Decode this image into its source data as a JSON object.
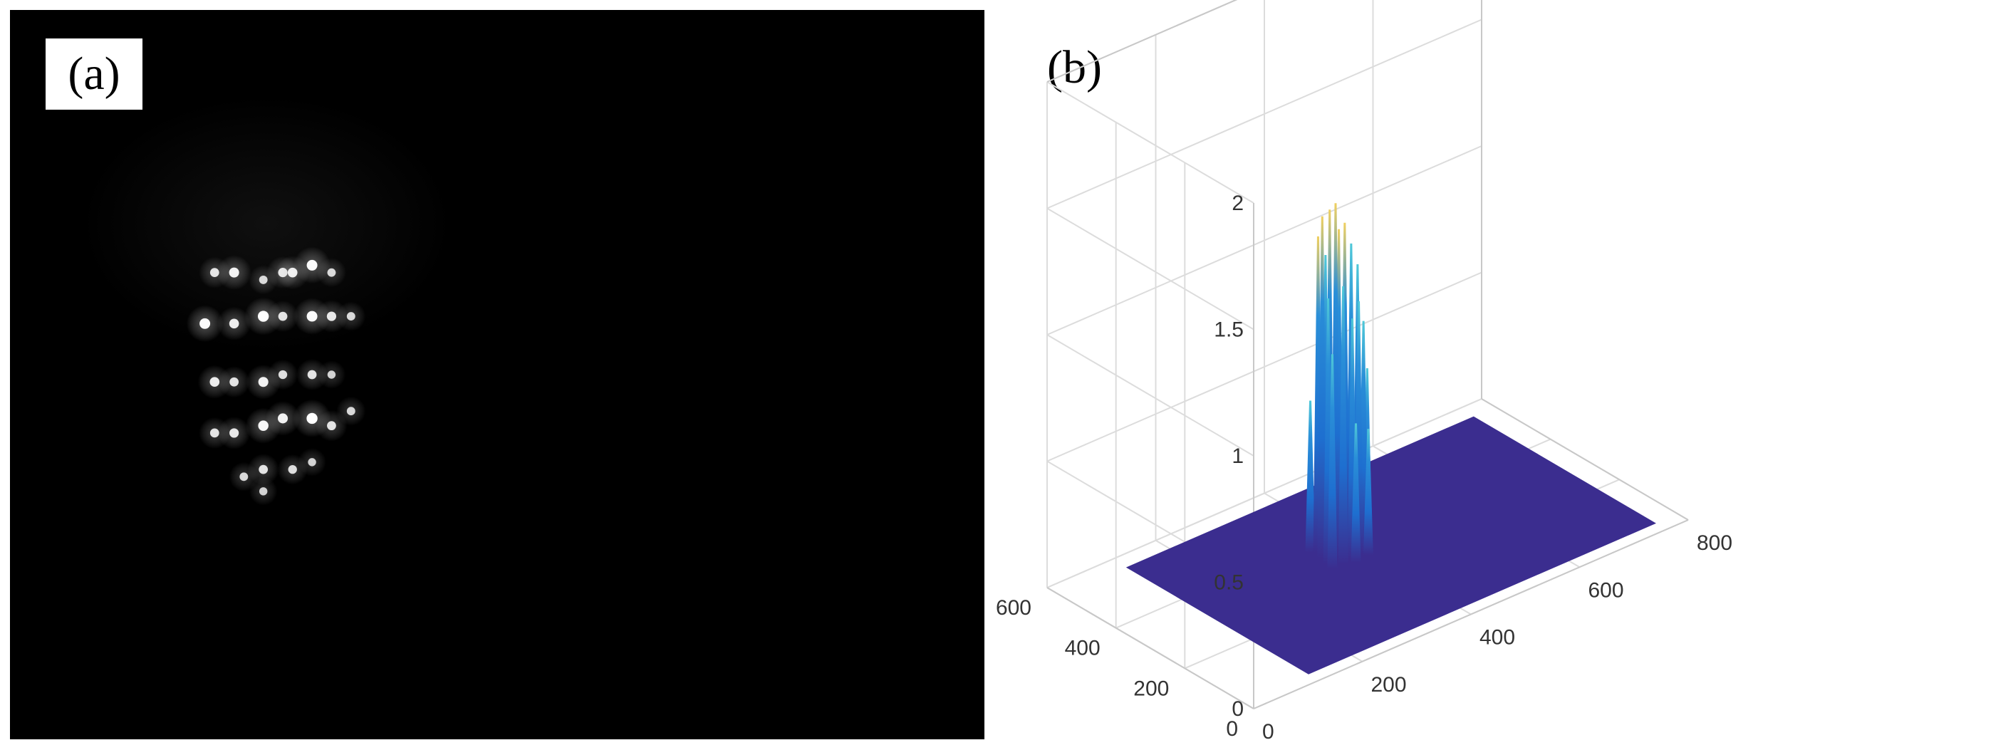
{
  "panels": {
    "a": {
      "label": "(a)"
    },
    "b": {
      "label": "(b)"
    }
  },
  "chart_data": [
    {
      "type": "image",
      "panel": "(a)",
      "description_colors": {
        "background": "#000000",
        "spot": "#ffffff"
      },
      "spots": [
        {
          "col": 0.21,
          "row": 0.36,
          "intensity": 0.7
        },
        {
          "col": 0.23,
          "row": 0.36,
          "intensity": 0.85
        },
        {
          "col": 0.26,
          "row": 0.37,
          "intensity": 0.6
        },
        {
          "col": 0.28,
          "row": 0.36,
          "intensity": 0.75
        },
        {
          "col": 0.29,
          "row": 0.36,
          "intensity": 0.8
        },
        {
          "col": 0.31,
          "row": 0.35,
          "intensity": 0.95
        },
        {
          "col": 0.33,
          "row": 0.36,
          "intensity": 0.6
        },
        {
          "col": 0.2,
          "row": 0.43,
          "intensity": 0.95
        },
        {
          "col": 0.23,
          "row": 0.43,
          "intensity": 0.8
        },
        {
          "col": 0.26,
          "row": 0.42,
          "intensity": 1.0
        },
        {
          "col": 0.28,
          "row": 0.42,
          "intensity": 0.7
        },
        {
          "col": 0.31,
          "row": 0.42,
          "intensity": 0.95
        },
        {
          "col": 0.33,
          "row": 0.42,
          "intensity": 0.75
        },
        {
          "col": 0.35,
          "row": 0.42,
          "intensity": 0.6
        },
        {
          "col": 0.21,
          "row": 0.51,
          "intensity": 0.8
        },
        {
          "col": 0.23,
          "row": 0.51,
          "intensity": 0.7
        },
        {
          "col": 0.26,
          "row": 0.51,
          "intensity": 0.85
        },
        {
          "col": 0.28,
          "row": 0.5,
          "intensity": 0.65
        },
        {
          "col": 0.31,
          "row": 0.5,
          "intensity": 0.7
        },
        {
          "col": 0.33,
          "row": 0.5,
          "intensity": 0.55
        },
        {
          "col": 0.21,
          "row": 0.58,
          "intensity": 0.7
        },
        {
          "col": 0.23,
          "row": 0.58,
          "intensity": 0.75
        },
        {
          "col": 0.26,
          "row": 0.57,
          "intensity": 0.9
        },
        {
          "col": 0.28,
          "row": 0.56,
          "intensity": 0.85
        },
        {
          "col": 0.31,
          "row": 0.56,
          "intensity": 1.0
        },
        {
          "col": 0.33,
          "row": 0.57,
          "intensity": 0.7
        },
        {
          "col": 0.35,
          "row": 0.55,
          "intensity": 0.6
        },
        {
          "col": 0.24,
          "row": 0.64,
          "intensity": 0.6
        },
        {
          "col": 0.26,
          "row": 0.63,
          "intensity": 0.7
        },
        {
          "col": 0.29,
          "row": 0.63,
          "intensity": 0.65
        },
        {
          "col": 0.31,
          "row": 0.62,
          "intensity": 0.55
        },
        {
          "col": 0.26,
          "row": 0.66,
          "intensity": 0.55
        }
      ]
    },
    {
      "type": "surface",
      "panel": "(b)",
      "xlim": [
        0,
        800
      ],
      "ylim": [
        0,
        600
      ],
      "zlim": [
        0,
        2
      ],
      "x_ticks": [
        "0",
        "200",
        "400",
        "600",
        "800"
      ],
      "y_ticks": [
        "0",
        "200",
        "400",
        "600"
      ],
      "z_ticks": [
        "0",
        "0.5",
        "1",
        "1.5",
        "2"
      ],
      "grid": true,
      "colormap": {
        "low": "#3b2d8f",
        "mid": "#2a8fd8",
        "high": "#f0d060"
      },
      "peak_region": {
        "x_range": [
          330,
          420
        ],
        "y_range": [
          290,
          380
        ]
      },
      "peaks": [
        {
          "x": 335,
          "y": 300,
          "z": 0.85
        },
        {
          "x": 340,
          "y": 320,
          "z": 1.05
        },
        {
          "x": 345,
          "y": 345,
          "z": 1.35
        },
        {
          "x": 350,
          "y": 365,
          "z": 1.25
        },
        {
          "x": 355,
          "y": 300,
          "z": 1.1
        },
        {
          "x": 360,
          "y": 330,
          "z": 1.4
        },
        {
          "x": 365,
          "y": 355,
          "z": 1.35
        },
        {
          "x": 370,
          "y": 375,
          "z": 1.15
        },
        {
          "x": 375,
          "y": 305,
          "z": 0.95
        },
        {
          "x": 380,
          "y": 335,
          "z": 1.3
        },
        {
          "x": 385,
          "y": 360,
          "z": 1.25
        },
        {
          "x": 390,
          "y": 310,
          "z": 1.0
        },
        {
          "x": 395,
          "y": 340,
          "z": 1.2
        },
        {
          "x": 400,
          "y": 365,
          "z": 1.05
        },
        {
          "x": 405,
          "y": 320,
          "z": 0.9
        },
        {
          "x": 410,
          "y": 345,
          "z": 1.1
        },
        {
          "x": 415,
          "y": 325,
          "z": 0.7
        },
        {
          "x": 342,
          "y": 375,
          "z": 0.6
        },
        {
          "x": 372,
          "y": 290,
          "z": 0.55
        },
        {
          "x": 398,
          "y": 295,
          "z": 0.5
        }
      ]
    }
  ]
}
